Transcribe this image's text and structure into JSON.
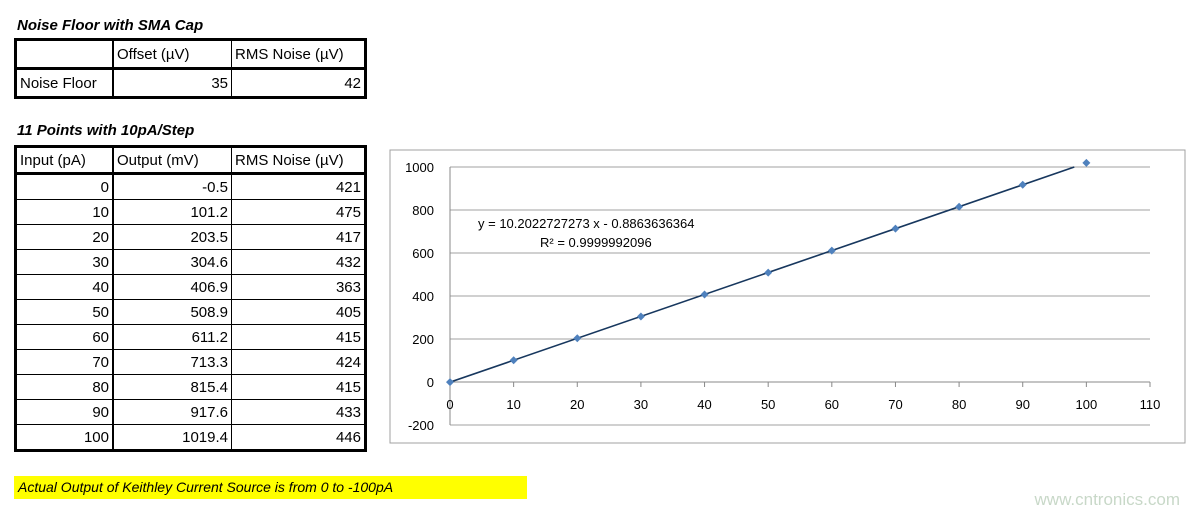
{
  "noise_floor": {
    "title": "Noise Floor with SMA Cap",
    "headers": [
      "",
      "Offset (µV)",
      "RMS Noise (µV)"
    ],
    "row": [
      "Noise Floor",
      "35",
      "42"
    ]
  },
  "points": {
    "title": "11 Points with 10pA/Step",
    "headers": [
      "Input (pA)",
      "Output (mV)",
      "RMS Noise (µV)"
    ],
    "rows": [
      [
        "0",
        "-0.5",
        "421"
      ],
      [
        "10",
        "101.2",
        "475"
      ],
      [
        "20",
        "203.5",
        "417"
      ],
      [
        "30",
        "304.6",
        "432"
      ],
      [
        "40",
        "406.9",
        "363"
      ],
      [
        "50",
        "508.9",
        "405"
      ],
      [
        "60",
        "611.2",
        "415"
      ],
      [
        "70",
        "713.3",
        "424"
      ],
      [
        "80",
        "815.4",
        "415"
      ],
      [
        "90",
        "917.6",
        "433"
      ],
      [
        "100",
        "1019.4",
        "446"
      ]
    ]
  },
  "note": "Actual Output of Keithley Current Source is from 0 to -100pA",
  "watermark": "www.cntronics.com",
  "chart_data": {
    "type": "scatter",
    "x": [
      0,
      10,
      20,
      30,
      40,
      50,
      60,
      70,
      80,
      90,
      100
    ],
    "y": [
      -0.5,
      101.2,
      203.5,
      304.6,
      406.9,
      508.9,
      611.2,
      713.3,
      815.4,
      917.6,
      1019.4
    ],
    "xlim": [
      0,
      110
    ],
    "ylim": [
      -200,
      1000
    ],
    "xticks": [
      0,
      10,
      20,
      30,
      40,
      50,
      60,
      70,
      80,
      90,
      100,
      110
    ],
    "yticks": [
      -200,
      0,
      200,
      400,
      600,
      800,
      1000
    ],
    "grid": "horizontal",
    "legend": "none",
    "marker_color": "#4f81bd",
    "trendline": {
      "slope": 10.2022727273,
      "intercept": -0.8863636364,
      "color": "#17375e",
      "equation": "y = 10.2022727273 x - 0.8863636364",
      "r2": "R² = 0.9999992096"
    }
  }
}
